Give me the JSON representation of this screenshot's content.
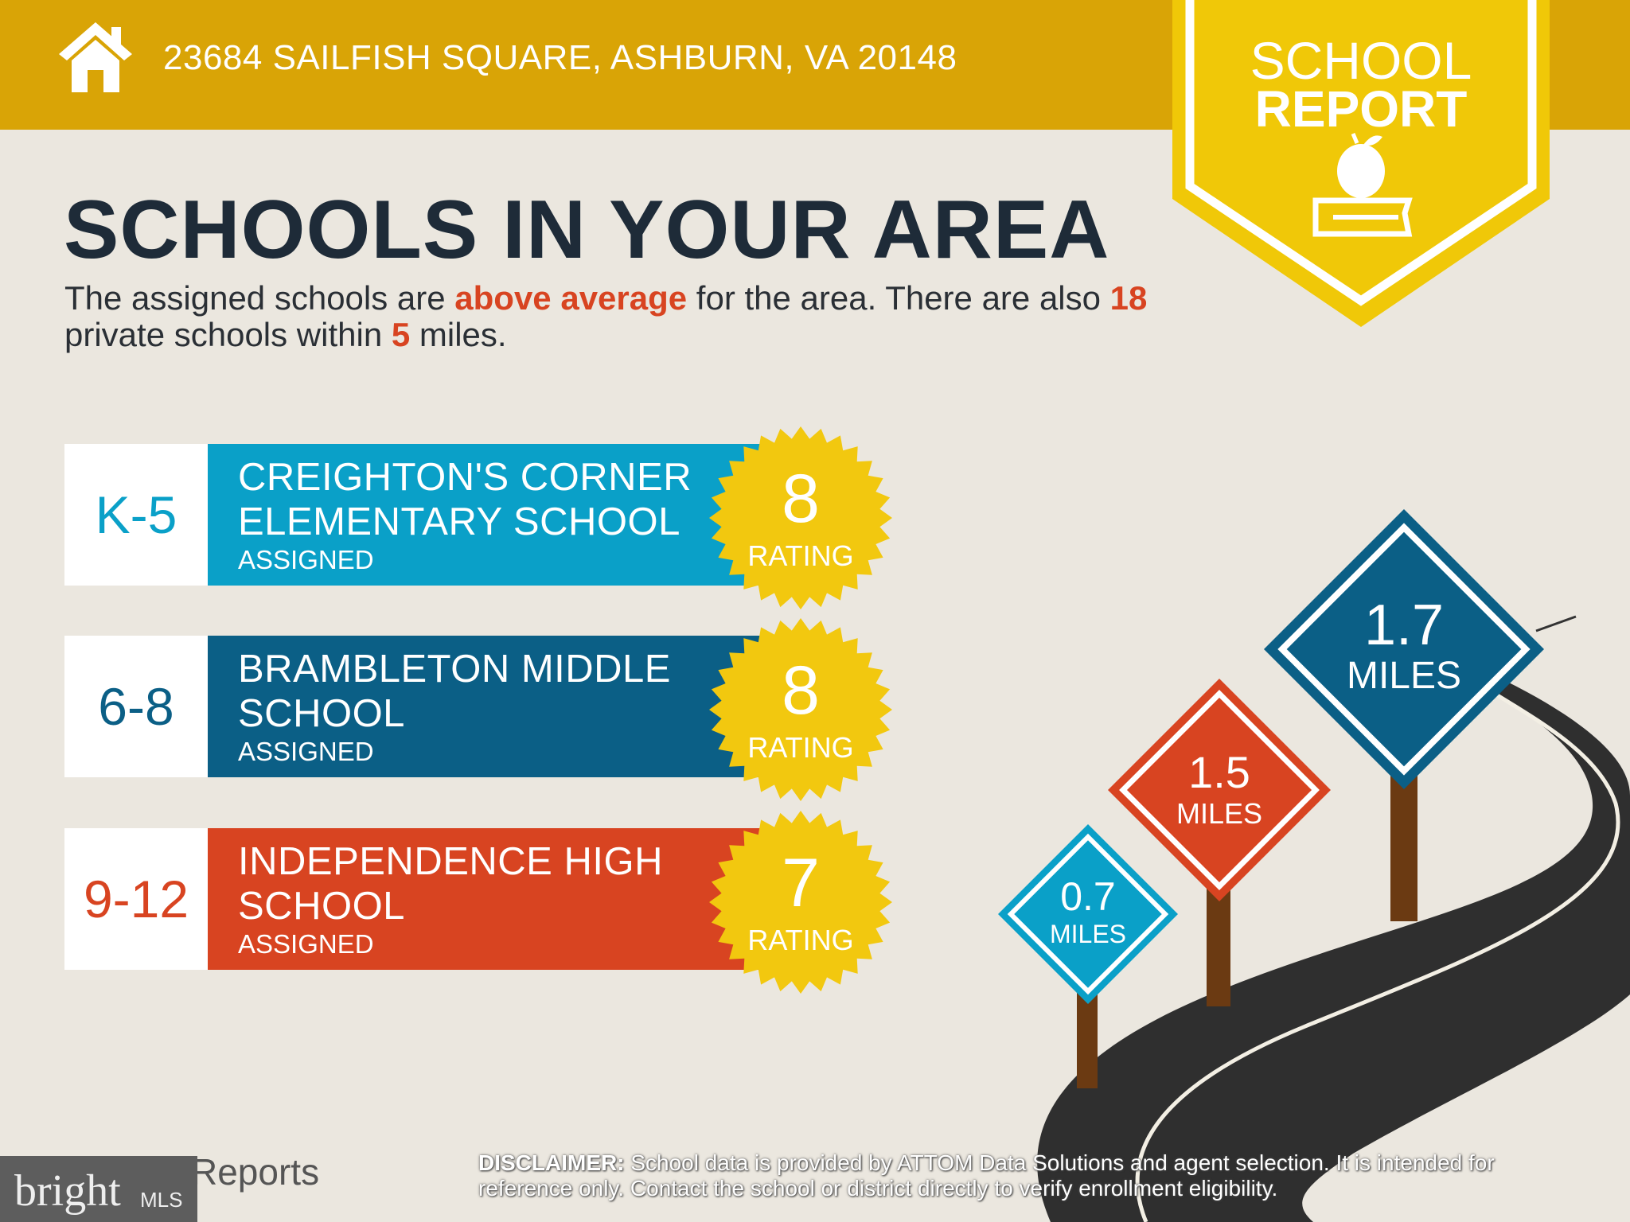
{
  "header": {
    "address": "23684 SAILFISH SQUARE, ASHBURN, VA 20148",
    "icon": "house-icon"
  },
  "badge": {
    "line1": "SCHOOL",
    "line2": "REPORT",
    "icon": "apple-on-book-icon"
  },
  "title": "SCHOOLS IN YOUR AREA",
  "summary": {
    "p1": "The assigned schools are ",
    "rating_word": "above average",
    "p2": " for the area. There are also ",
    "private_count": "18",
    "p3": " private schools within ",
    "radius": "5",
    "p4": " miles."
  },
  "schools": [
    {
      "grade": "K-5",
      "name1": "CREIGHTON'S CORNER",
      "name2": "ELEMENTARY SCHOOL",
      "status": "ASSIGNED",
      "rating": "8",
      "rating_label": "RATING",
      "color": "#0aa0c8"
    },
    {
      "grade": "6-8",
      "name1": "BRAMBLETON MIDDLE",
      "name2": "SCHOOL",
      "status": "ASSIGNED",
      "rating": "8",
      "rating_label": "RATING",
      "color": "#0b5f86"
    },
    {
      "grade": "9-12",
      "name1": "INDEPENDENCE HIGH",
      "name2": "SCHOOL",
      "status": "ASSIGNED",
      "rating": "7",
      "rating_label": "RATING",
      "color": "#d84421"
    }
  ],
  "signs": [
    {
      "distance": "0.7",
      "unit": "MILES",
      "color": "#0aa0c8"
    },
    {
      "distance": "1.5",
      "unit": "MILES",
      "color": "#d84421"
    },
    {
      "distance": "1.7",
      "unit": "MILES",
      "color": "#0b5f86"
    }
  ],
  "disclaimer": {
    "label": "DISCLAIMER:",
    "text": " School data is provided by ATTOM Data Solutions and agent selection. It is intended for reference only. Contact the school or district directly to verify enrollment eligibility."
  },
  "footer": {
    "reports": "Reports",
    "mls_logo": "bright MLS"
  }
}
